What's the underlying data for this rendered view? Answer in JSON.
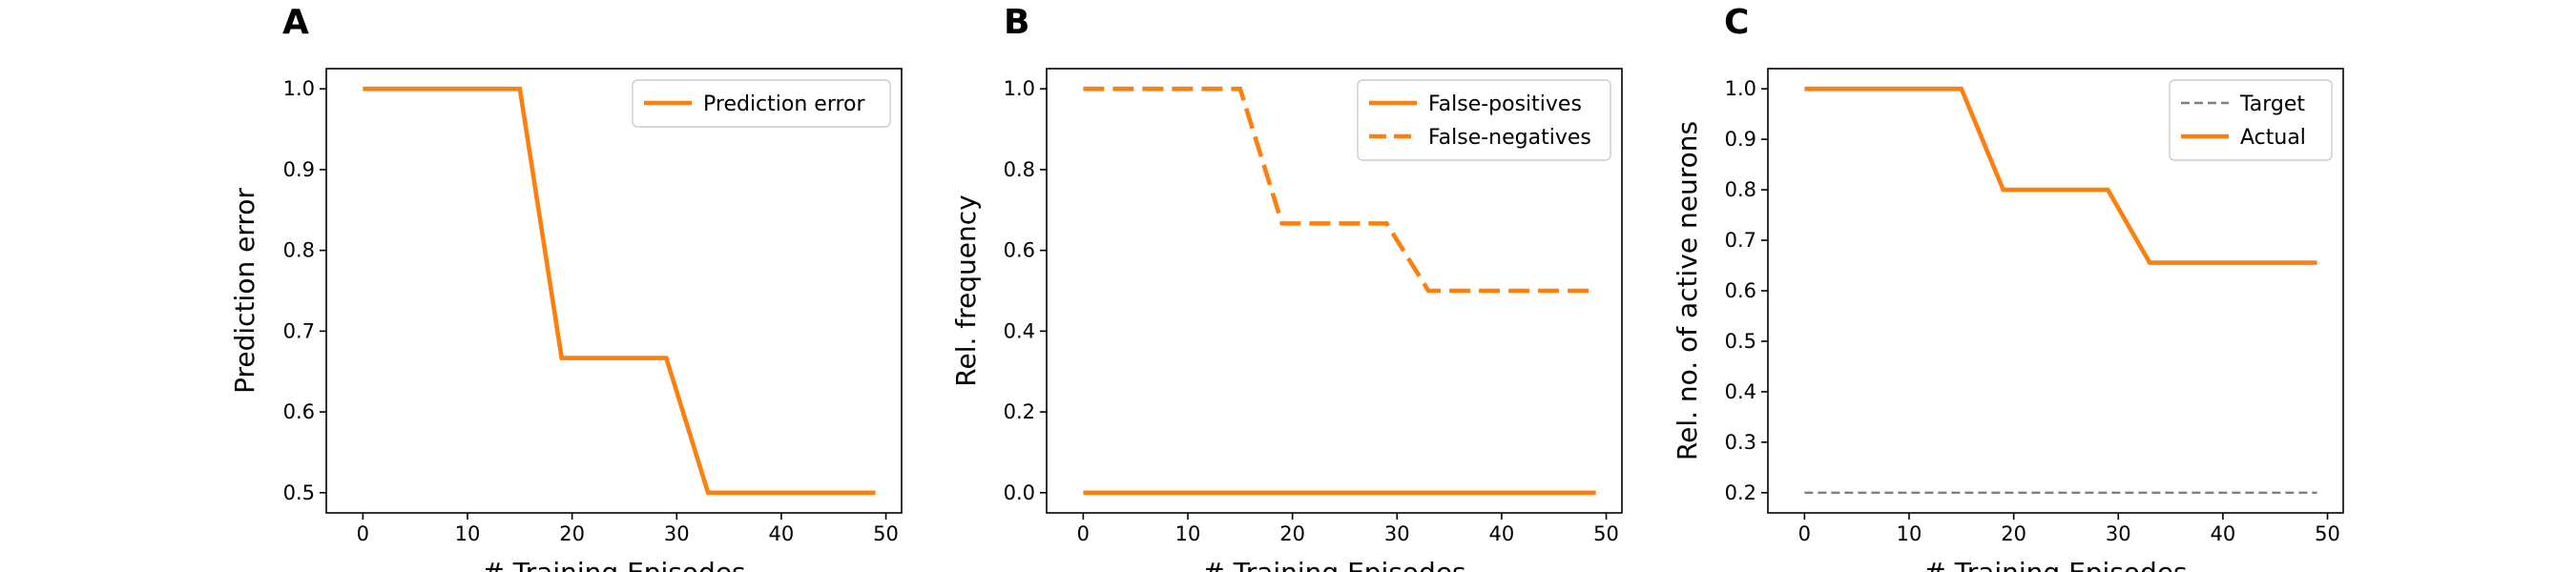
{
  "chart_data": [
    {
      "type": "line",
      "panel_label": "A",
      "xlabel": "# Training Episodes",
      "ylabel": "Prediction error",
      "xlim": [
        -3.5,
        51.5
      ],
      "ylim": [
        0.475,
        1.025
      ],
      "xticks": [
        0,
        10,
        20,
        30,
        40,
        50
      ],
      "yticks": [
        0.5,
        0.6,
        0.7,
        0.8,
        0.9,
        1.0
      ],
      "ytick_labels": [
        "0.5",
        "0.6",
        "0.7",
        "0.8",
        "0.9",
        "1.0"
      ],
      "grid": false,
      "legend_position": "upper-right",
      "series": [
        {
          "name": "Prediction error",
          "color": "#ff7f0e",
          "style": "solid",
          "x": [
            0,
            15,
            19,
            29,
            33,
            49
          ],
          "y": [
            1.0,
            1.0,
            0.6667,
            0.6667,
            0.5,
            0.5
          ]
        }
      ]
    },
    {
      "type": "line",
      "panel_label": "B",
      "xlabel": "# Training Episodes",
      "ylabel": "Rel. frequency",
      "xlim": [
        -3.5,
        51.5
      ],
      "ylim": [
        -0.05,
        1.05
      ],
      "xticks": [
        0,
        10,
        20,
        30,
        40,
        50
      ],
      "yticks": [
        0.0,
        0.2,
        0.4,
        0.6,
        0.8,
        1.0
      ],
      "ytick_labels": [
        "0.0",
        "0.2",
        "0.4",
        "0.6",
        "0.8",
        "1.0"
      ],
      "grid": false,
      "legend_position": "upper-right",
      "series": [
        {
          "name": "False-positives",
          "color": "#ff7f0e",
          "style": "solid",
          "x": [
            0,
            49
          ],
          "y": [
            0.0,
            0.0
          ]
        },
        {
          "name": "False-negatives",
          "color": "#ff7f0e",
          "style": "dashed",
          "x": [
            0,
            15,
            19,
            29,
            33,
            49
          ],
          "y": [
            1.0,
            1.0,
            0.6667,
            0.6667,
            0.5,
            0.5
          ]
        }
      ]
    },
    {
      "type": "line",
      "panel_label": "C",
      "xlabel": "# Training Episodes",
      "ylabel": "Rel. no. of active neurons",
      "xlim": [
        -3.5,
        51.5
      ],
      "ylim": [
        0.16,
        1.04
      ],
      "xticks": [
        0,
        10,
        20,
        30,
        40,
        50
      ],
      "yticks": [
        0.2,
        0.3,
        0.4,
        0.5,
        0.6,
        0.7,
        0.8,
        0.9,
        1.0
      ],
      "ytick_labels": [
        "0.2",
        "0.3",
        "0.4",
        "0.5",
        "0.6",
        "0.7",
        "0.8",
        "0.9",
        "1.0"
      ],
      "grid": false,
      "legend_position": "upper-right",
      "series": [
        {
          "name": "Target",
          "color": "#808080",
          "style": "thin-dashed",
          "x": [
            0,
            49
          ],
          "y": [
            0.2,
            0.2
          ]
        },
        {
          "name": "Actual",
          "color": "#ff7f0e",
          "style": "solid",
          "x": [
            0,
            15,
            19,
            29,
            33,
            49
          ],
          "y": [
            1.0,
            1.0,
            0.8,
            0.8,
            0.6556,
            0.6556
          ]
        }
      ]
    }
  ]
}
